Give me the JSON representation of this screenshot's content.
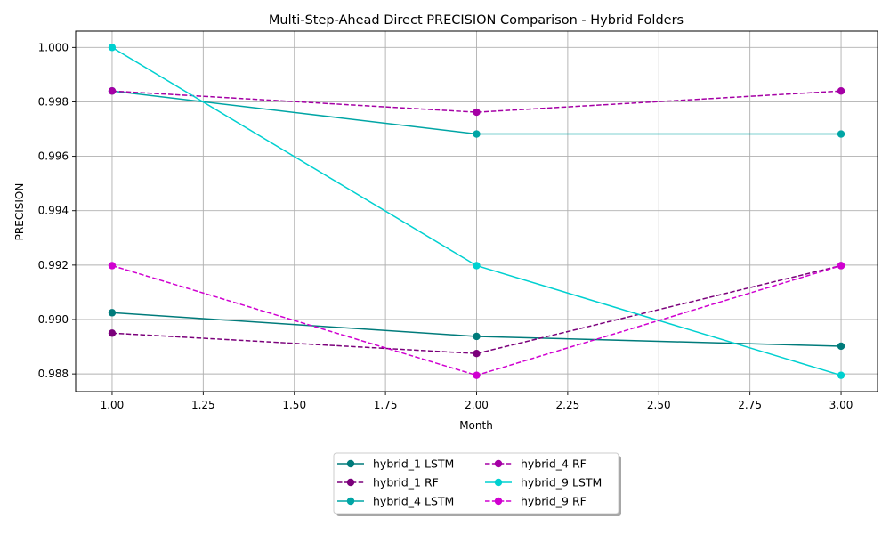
{
  "chart_data": {
    "type": "line",
    "title": "Multi-Step-Ahead Direct PRECISION Comparison - Hybrid Folders",
    "xlabel": "Month",
    "ylabel": "PRECISION",
    "xlim": [
      0.9,
      3.1
    ],
    "ylim": [
      0.98735,
      1.0006
    ],
    "xticks": [
      1.0,
      1.25,
      1.5,
      1.75,
      2.0,
      2.25,
      2.5,
      2.75,
      3.0
    ],
    "xtick_labels": [
      "1.00",
      "1.25",
      "1.50",
      "1.75",
      "2.00",
      "2.25",
      "2.50",
      "2.75",
      "3.00"
    ],
    "yticks": [
      0.988,
      0.99,
      0.992,
      0.994,
      0.996,
      0.998,
      1.0
    ],
    "ytick_labels": [
      "0.988",
      "0.990",
      "0.992",
      "0.994",
      "0.996",
      "0.998",
      "1.000"
    ],
    "grid": true,
    "legend_position": "bottom-center",
    "x": [
      1,
      2,
      3
    ],
    "series": [
      {
        "name": "hybrid_1 LSTM",
        "color": "#007b7b",
        "dash": "solid",
        "values": [
          0.99025,
          0.98938,
          0.98902
        ]
      },
      {
        "name": "hybrid_1 RF",
        "color": "#7b007b",
        "dash": "dashed",
        "values": [
          0.9895,
          0.98875,
          0.99198
        ]
      },
      {
        "name": "hybrid_4 LSTM",
        "color": "#00a5a5",
        "dash": "solid",
        "values": [
          0.9984,
          0.99682,
          0.99682
        ]
      },
      {
        "name": "hybrid_4 RF",
        "color": "#a500a5",
        "dash": "dashed",
        "values": [
          0.9984,
          0.99762,
          0.9984
        ]
      },
      {
        "name": "hybrid_9 LSTM",
        "color": "#00d0d0",
        "dash": "solid",
        "values": [
          1.0,
          0.99198,
          0.98795
        ]
      },
      {
        "name": "hybrid_9 RF",
        "color": "#d000d0",
        "dash": "dashed",
        "values": [
          0.99198,
          0.98795,
          0.99198
        ]
      }
    ]
  }
}
